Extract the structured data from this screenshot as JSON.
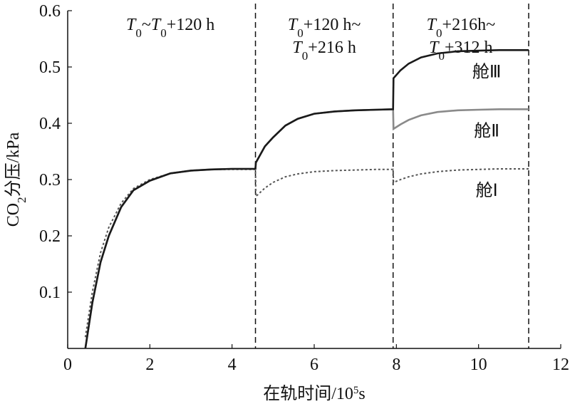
{
  "chart_data": {
    "type": "line",
    "xlabel": [
      {
        "text": "在轨时间/10"
      },
      {
        "text": "5",
        "style": "super"
      },
      {
        "text": "s"
      }
    ],
    "ylabel": [
      {
        "text": "CO"
      },
      {
        "text": "2",
        "style": "sub"
      },
      {
        "text": "分压/kPa"
      }
    ],
    "xlim": [
      0,
      12
    ],
    "ylim": [
      0,
      0.6
    ],
    "xticks": [
      0,
      2,
      4,
      6,
      8,
      10,
      12
    ],
    "yticks": [
      0.1,
      0.2,
      0.3,
      0.4,
      0.5,
      0.6
    ],
    "phases": [
      {
        "start": 0.43,
        "end": 4.57,
        "label": [
          [
            {
              "text": "T",
              "style": "italic"
            },
            {
              "text": "0",
              "style": "sub"
            },
            {
              "text": "~"
            },
            {
              "text": "T",
              "style": "italic"
            },
            {
              "text": "0",
              "style": "sub"
            },
            {
              "text": "+120 h"
            }
          ]
        ]
      },
      {
        "start": 4.57,
        "end": 7.92,
        "label": [
          [
            {
              "text": "T",
              "style": "italic"
            },
            {
              "text": "0",
              "style": "sub"
            },
            {
              "text": "+120 h~"
            }
          ],
          [
            {
              "text": "T",
              "style": "italic"
            },
            {
              "text": "0",
              "style": "sub"
            },
            {
              "text": "+216 h"
            }
          ]
        ]
      },
      {
        "start": 7.92,
        "end": 11.22,
        "label": [
          [
            {
              "text": "T",
              "style": "italic"
            },
            {
              "text": "0",
              "style": "sub"
            },
            {
              "text": "+216h~"
            }
          ],
          [
            {
              "text": "T",
              "style": "italic"
            },
            {
              "text": "0",
              "style": "sub"
            },
            {
              "text": "+312 h"
            }
          ]
        ]
      }
    ],
    "x": [
      0.43,
      0.6,
      0.8,
      1.0,
      1.3,
      1.6,
      2.0,
      2.5,
      3.0,
      3.5,
      4.0,
      4.57,
      4.58,
      4.8,
      5.0,
      5.3,
      5.6,
      6.0,
      6.5,
      7.0,
      7.5,
      7.92,
      7.93,
      8.1,
      8.3,
      8.6,
      9.0,
      9.5,
      10.0,
      10.5,
      11.0,
      11.22
    ],
    "series": [
      {
        "name": "舱Ⅲ",
        "color": "#1a1a1a",
        "style": "solid",
        "values": [
          0,
          0.081,
          0.153,
          0.2,
          0.251,
          0.281,
          0.298,
          0.311,
          0.316,
          0.318,
          0.319,
          0.319,
          0.33,
          0.359,
          0.375,
          0.396,
          0.408,
          0.417,
          0.421,
          0.423,
          0.424,
          0.425,
          0.48,
          0.494,
          0.506,
          0.517,
          0.524,
          0.528,
          0.529,
          0.53,
          0.53,
          0.53
        ]
      },
      {
        "name": "舱Ⅱ",
        "color": "#8a8a8a",
        "style": "solid",
        "values": [
          0,
          0.081,
          0.153,
          0.2,
          0.251,
          0.281,
          0.298,
          0.311,
          0.316,
          0.318,
          0.319,
          0.319,
          0.33,
          0.359,
          0.375,
          0.396,
          0.408,
          0.417,
          0.421,
          0.423,
          0.424,
          0.425,
          0.39,
          0.398,
          0.406,
          0.414,
          0.42,
          0.423,
          0.424,
          0.425,
          0.425,
          0.425
        ]
      },
      {
        "name": "舱Ⅰ",
        "color": "#555555",
        "style": "dotted",
        "values": [
          0.02,
          0.1,
          0.17,
          0.215,
          0.258,
          0.284,
          0.3,
          0.311,
          0.316,
          0.318,
          0.318,
          0.318,
          0.27,
          0.285,
          0.295,
          0.305,
          0.31,
          0.314,
          0.316,
          0.317,
          0.318,
          0.318,
          0.295,
          0.3,
          0.305,
          0.31,
          0.314,
          0.317,
          0.318,
          0.319,
          0.319,
          0.319
        ]
      }
    ]
  }
}
